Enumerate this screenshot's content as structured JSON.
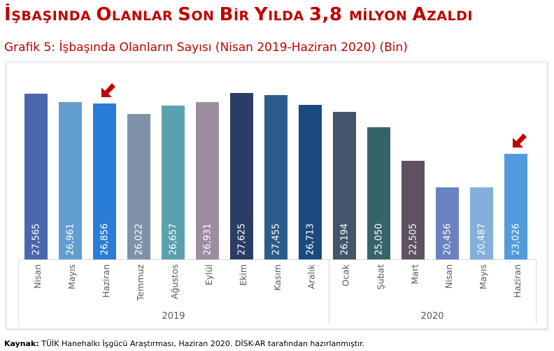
{
  "header": {
    "title_parts": [
      {
        "big": "İ",
        "small": "ŞBAŞINDA "
      },
      {
        "big": "O",
        "small": "LANLAR "
      },
      {
        "big": "S",
        "small": "ON "
      },
      {
        "big": "B",
        "small": "İR "
      },
      {
        "big": "Y",
        "small": "ILDA "
      },
      {
        "big": "3,8 ",
        "small": "MİLYON "
      },
      {
        "big": "A",
        "small": "ZALDI"
      }
    ],
    "title": "İşbaşında Olanlar Son Bir Yılda 3,8 Milyon Azaldı",
    "subtitle": "Grafik 5: İşbaşında Olanların Sayısı (Nisan 2019-Haziran 2020) (Bin)"
  },
  "colors": {
    "title": "#c00000",
    "arrow": "#c00000",
    "axis": "#d9d9d9",
    "label_text": "#595959",
    "bars": [
      "#4a67ad",
      "#629dd0",
      "#2a7dd4",
      "#8191a9",
      "#5ba1ad",
      "#9d8e9f",
      "#2b3c66",
      "#2b5d8a",
      "#1b4a7f",
      "#44556b",
      "#36636a",
      "#5e5262",
      "#6b82c0",
      "#82b0da",
      "#519ade"
    ]
  },
  "chart_data": {
    "type": "bar",
    "title": "Grafik 5: İşbaşında Olanların Sayısı (Nisan 2019-Haziran 2020) (Bin)",
    "xlabel": "",
    "ylabel": "",
    "unit": "Bin",
    "categories": [
      "Nisan",
      "Mayıs",
      "Haziran",
      "Temmuz",
      "Ağustos",
      "Eylül",
      "Ekim",
      "Kasım",
      "Aralık",
      "Ocak",
      "Şubat",
      "Mart",
      "Nisan",
      "Mayıs",
      "Haziran"
    ],
    "category_groups": [
      {
        "label": "2019",
        "start": 0,
        "end": 8
      },
      {
        "label": "2020",
        "start": 9,
        "end": 14
      }
    ],
    "values": [
      27565,
      26961,
      26856,
      26022,
      26657,
      26931,
      27625,
      27455,
      26713,
      26194,
      25050,
      22505,
      20456,
      20487,
      23026
    ],
    "value_labels": [
      "27,565",
      "26,961",
      "26,856",
      "26,022",
      "26,657",
      "26,931",
      "27,625",
      "27,455",
      "26,713",
      "26,194",
      "25,050",
      "22,505",
      "20,456",
      "20,487",
      "23,026"
    ],
    "ylim": [
      15000,
      28500
    ],
    "grid": false,
    "legend": "none",
    "annotations": [
      {
        "type": "arrow",
        "category_index": 2,
        "note": "Haziran 2019"
      },
      {
        "type": "arrow",
        "category_index": 14,
        "note": "Haziran 2020"
      }
    ]
  },
  "footer": {
    "source_label": "Kaynak:",
    "source_text": " TÜİK Hanehalkı İşgücü Araştırması, Haziran 2020. DİSK-AR tarafından hazırlanmıştır."
  }
}
